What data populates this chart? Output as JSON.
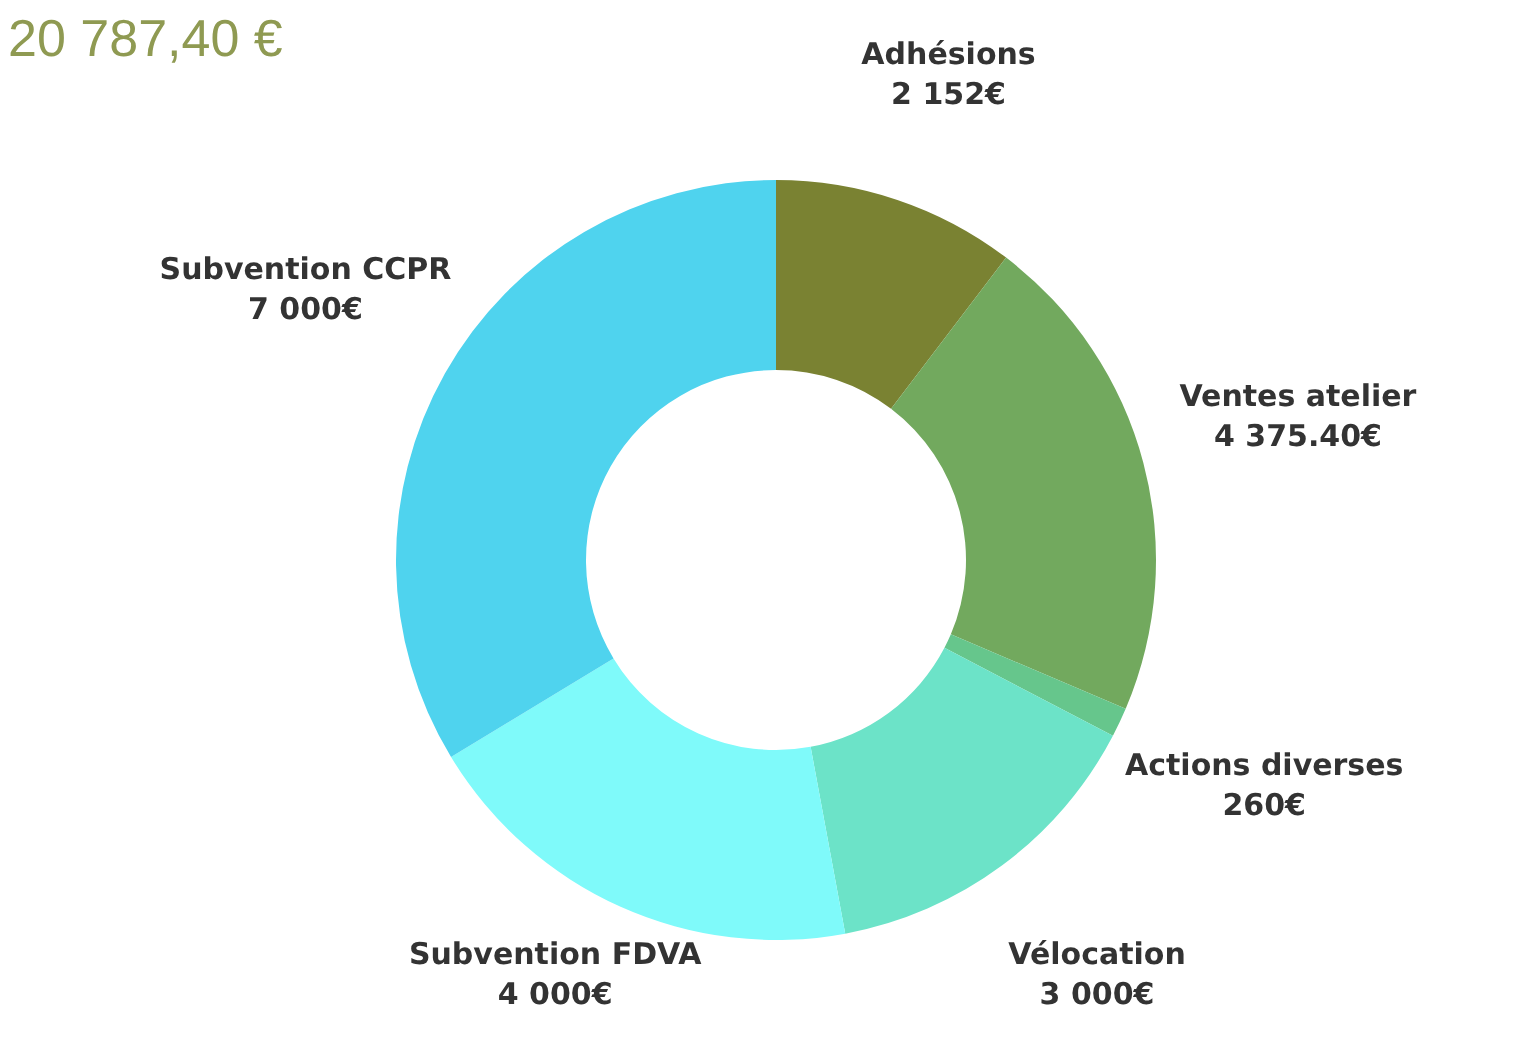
{
  "chart_data": {
    "type": "donut",
    "title": "20 787,40 €",
    "categories": [
      "Adhésions",
      "Ventes atelier",
      "Actions diverses",
      "Vélocation",
      "Subvention FDVA",
      "Subvention CCPR"
    ],
    "values": [
      2152,
      4375.4,
      260,
      3000,
      4000,
      7000
    ],
    "value_labels": [
      "2 152€",
      "4 375.40€",
      "260€",
      "3 000€",
      "4 000€",
      "7 000€"
    ],
    "colors": [
      "#7a8232",
      "#72a95e",
      "#66c68c",
      "#6ce3c8",
      "#7ffafa",
      "#4fd3ee"
    ]
  }
}
